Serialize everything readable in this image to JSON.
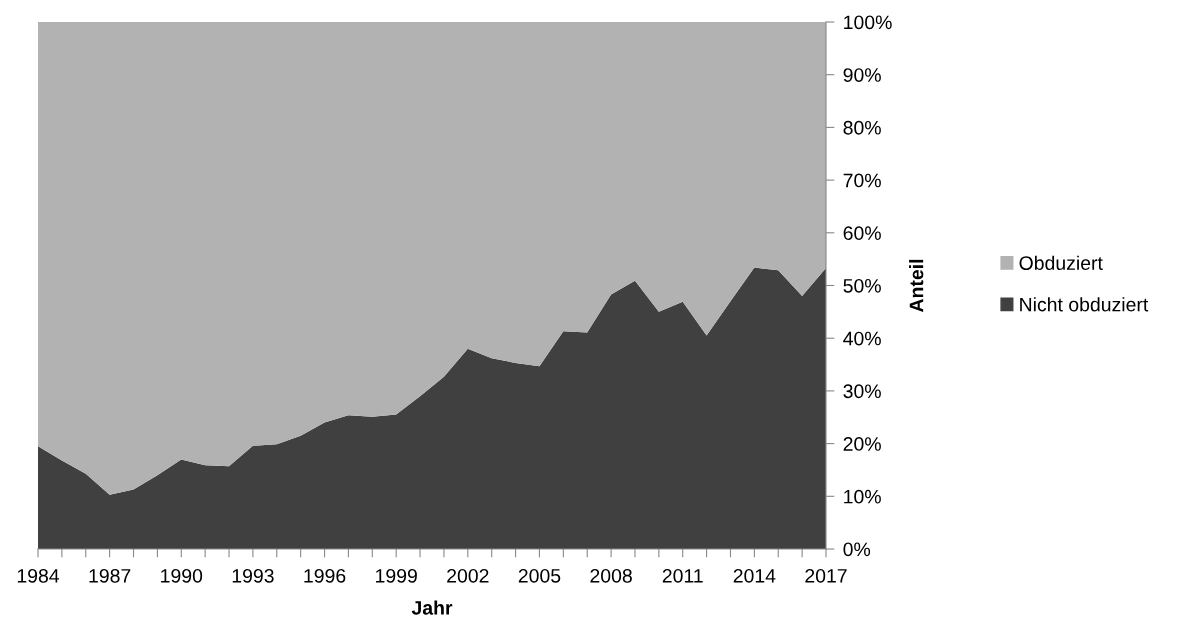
{
  "chart_data": {
    "type": "area",
    "stacked": true,
    "xlabel": "Jahr",
    "ylabel": "Anteil",
    "legend": "right",
    "grid": false,
    "x": [
      1984,
      1985,
      1986,
      1987,
      1988,
      1989,
      1990,
      1991,
      1992,
      1993,
      1994,
      1995,
      1996,
      1997,
      1998,
      1999,
      2000,
      2001,
      2002,
      2003,
      2004,
      2005,
      2006,
      2007,
      2008,
      2009,
      2010,
      2011,
      2012,
      2013,
      2014,
      2015,
      2016,
      2017
    ],
    "series": [
      {
        "name": "Nicht obduziert",
        "color": "#404040",
        "values": [
          19.5,
          16.8,
          14.3,
          10.3,
          11.3,
          14.0,
          17.0,
          15.9,
          15.7,
          19.6,
          19.9,
          21.5,
          24.0,
          25.4,
          25.1,
          25.5,
          29.0,
          32.7,
          38.0,
          36.2,
          35.3,
          34.7,
          41.3,
          41.1,
          48.3,
          50.9,
          45.0,
          46.9,
          40.5,
          47.0,
          53.4,
          52.9,
          48.0,
          53.3
        ]
      },
      {
        "name": "Obduziert",
        "color": "#b2b2b2",
        "values": [
          80.5,
          83.2,
          85.7,
          89.7,
          88.7,
          86.0,
          83.0,
          84.1,
          84.3,
          80.4,
          80.1,
          78.5,
          76.0,
          74.6,
          74.9,
          74.5,
          71.0,
          67.3,
          62.0,
          63.8,
          64.7,
          65.3,
          58.7,
          58.9,
          51.7,
          49.1,
          55.0,
          53.1,
          59.5,
          53.0,
          46.6,
          47.1,
          52.0,
          46.7
        ]
      }
    ],
    "xlim": [
      1984,
      2017
    ],
    "xticks": [
      1984,
      {
        "value": 1985,
        "label": null
      },
      {
        "value": 1986,
        "label": null
      },
      1987,
      {
        "value": 1988,
        "label": null
      },
      {
        "value": 1989,
        "label": null
      },
      1990,
      {
        "value": 1991,
        "label": null
      },
      {
        "value": 1992,
        "label": null
      },
      1993,
      {
        "value": 1994,
        "label": null
      },
      {
        "value": 1995,
        "label": null
      },
      1996,
      {
        "value": 1997,
        "label": null
      },
      {
        "value": 1998,
        "label": null
      },
      1999,
      {
        "value": 2000,
        "label": null
      },
      {
        "value": 2001,
        "label": null
      },
      2002,
      {
        "value": 2003,
        "label": null
      },
      {
        "value": 2004,
        "label": null
      },
      2005,
      {
        "value": 2006,
        "label": null
      },
      {
        "value": 2007,
        "label": null
      },
      2008,
      {
        "value": 2009,
        "label": null
      },
      {
        "value": 2010,
        "label": null
      },
      2011,
      {
        "value": 2012,
        "label": null
      },
      {
        "value": 2013,
        "label": null
      },
      2014,
      {
        "value": 2015,
        "label": null
      },
      {
        "value": 2016,
        "label": null
      },
      2017
    ],
    "ylim": [
      0,
      100
    ],
    "yticks": [
      {
        "value": 0,
        "label": "0%"
      },
      {
        "value": 10,
        "label": "10%"
      },
      {
        "value": 20,
        "label": "20%"
      },
      {
        "value": 30,
        "label": "30%"
      },
      {
        "value": 40,
        "label": "40%"
      },
      {
        "value": 50,
        "label": "50%"
      },
      {
        "value": 60,
        "label": "60%"
      },
      {
        "value": 70,
        "label": "70%"
      },
      {
        "value": 80,
        "label": "80%"
      },
      {
        "value": 90,
        "label": "90%"
      },
      {
        "value": 100,
        "label": "100%"
      }
    ]
  }
}
